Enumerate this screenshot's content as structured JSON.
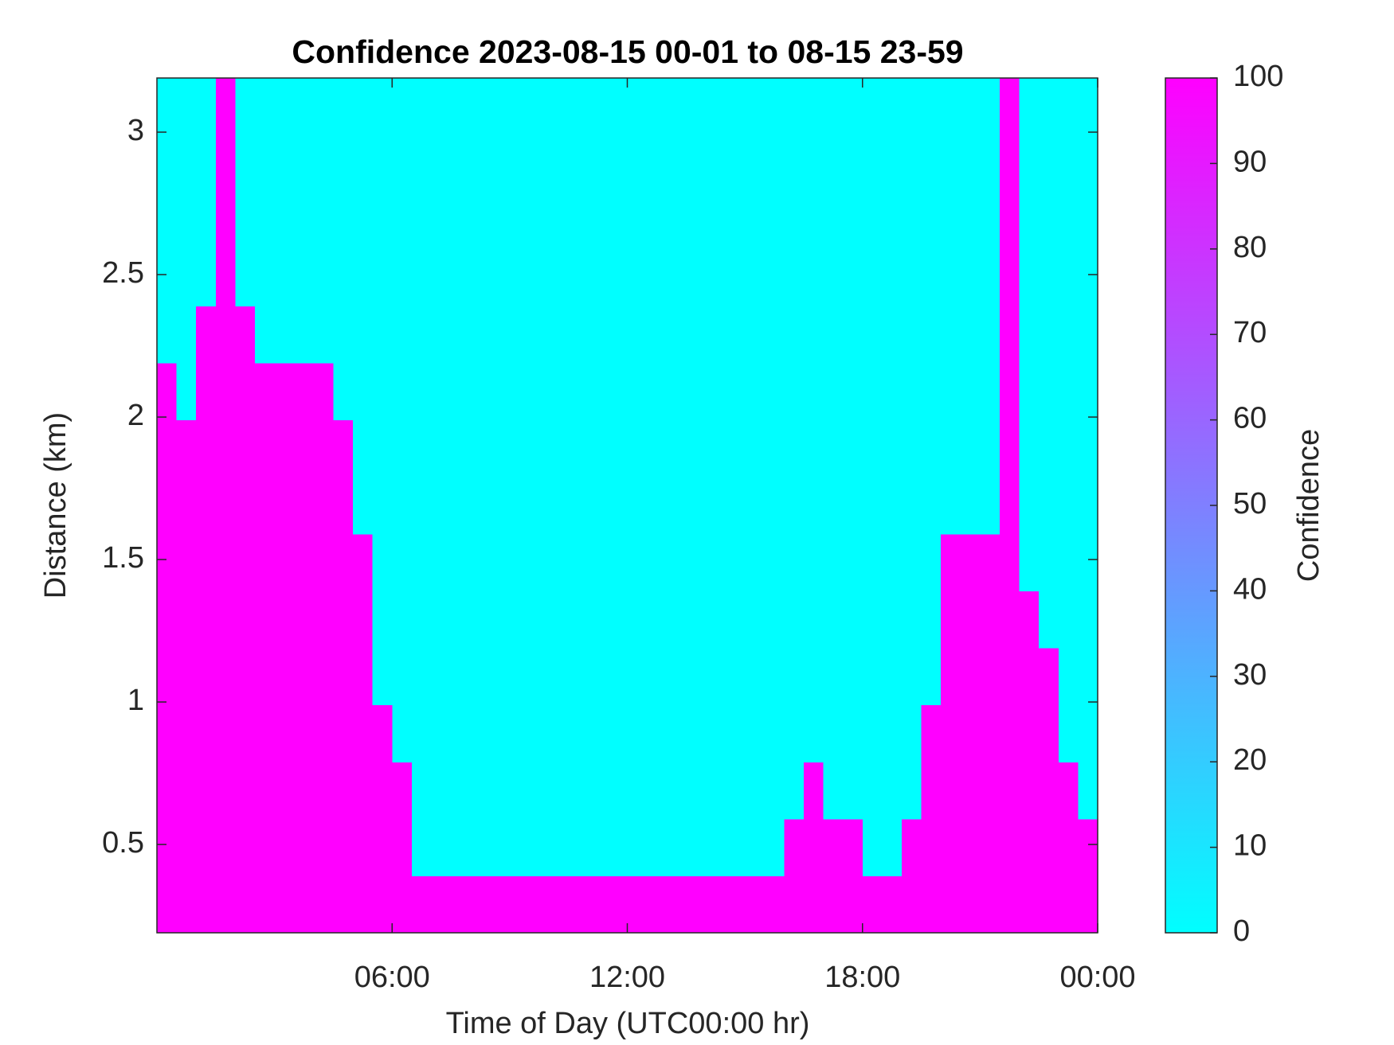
{
  "chart_data": {
    "type": "heatmap",
    "title": "Confidence 2023-08-15 00-01 to 08-15 23-59",
    "xlabel": "Time of Day (UTC00:00 hr)",
    "ylabel": "Distance (km)",
    "colorbar_label": "Confidence",
    "colormap": [
      "#00ffff",
      "#ff00ff"
    ],
    "xlim": [
      0,
      24
    ],
    "xticks": [
      {
        "value": 6,
        "label": "06:00"
      },
      {
        "value": 12,
        "label": "12:00"
      },
      {
        "value": 18,
        "label": "18:00"
      },
      {
        "value": 24,
        "label": "00:00"
      }
    ],
    "ylim": [
      0.19,
      3.19
    ],
    "yticks": [
      0.5,
      1,
      1.5,
      2,
      2.5,
      3
    ],
    "clim": [
      0,
      100
    ],
    "cticks": [
      0,
      10,
      20,
      30,
      40,
      50,
      60,
      70,
      80,
      90,
      100
    ],
    "x": [
      0.25,
      0.75,
      1.25,
      1.75,
      2.25,
      2.75,
      3.25,
      3.75,
      4.25,
      4.75,
      5.25,
      5.75,
      6.25,
      6.75,
      7.25,
      7.75,
      8.25,
      8.75,
      9.25,
      9.75,
      10.25,
      10.75,
      11.25,
      11.75,
      12.25,
      12.75,
      13.25,
      13.75,
      14.25,
      14.75,
      15.25,
      15.75,
      16.25,
      16.75,
      17.25,
      17.75,
      18.25,
      18.75,
      19.25,
      19.75,
      20.25,
      20.75,
      21.25,
      21.75,
      22.25,
      22.75,
      23.25,
      23.75
    ],
    "y": [
      0.29,
      0.49,
      0.69,
      0.89,
      1.09,
      1.29,
      1.49,
      1.69,
      1.89,
      2.09,
      2.29,
      2.49,
      2.69,
      2.89,
      3.09
    ],
    "z": [
      [
        100,
        100,
        100,
        100,
        100,
        100,
        100,
        100,
        100,
        100,
        100,
        100,
        100,
        100,
        100,
        100,
        100,
        100,
        100,
        100,
        100,
        100,
        100,
        100,
        100,
        100,
        100,
        100,
        100,
        100,
        100,
        100,
        100,
        100,
        100,
        100,
        100,
        100,
        100,
        100,
        100,
        100,
        100,
        100,
        100,
        100,
        100,
        100
      ],
      [
        100,
        100,
        100,
        100,
        100,
        100,
        100,
        100,
        100,
        100,
        100,
        100,
        100,
        0,
        0,
        0,
        0,
        0,
        0,
        0,
        0,
        0,
        0,
        0,
        0,
        0,
        0,
        0,
        0,
        0,
        0,
        0,
        100,
        100,
        100,
        100,
        0,
        0,
        100,
        100,
        100,
        100,
        100,
        100,
        100,
        100,
        100,
        100
      ],
      [
        100,
        100,
        100,
        100,
        100,
        100,
        100,
        100,
        100,
        100,
        100,
        100,
        100,
        0,
        0,
        0,
        0,
        0,
        0,
        0,
        0,
        0,
        0,
        0,
        0,
        0,
        0,
        0,
        0,
        0,
        0,
        0,
        0,
        100,
        0,
        0,
        0,
        0,
        0,
        100,
        100,
        100,
        100,
        100,
        100,
        100,
        100,
        0
      ],
      [
        100,
        100,
        100,
        100,
        100,
        100,
        100,
        100,
        100,
        100,
        100,
        100,
        0,
        0,
        0,
        0,
        0,
        0,
        0,
        0,
        0,
        0,
        0,
        0,
        0,
        0,
        0,
        0,
        0,
        0,
        0,
        0,
        0,
        0,
        0,
        0,
        0,
        0,
        0,
        100,
        100,
        100,
        100,
        100,
        100,
        100,
        0,
        0
      ],
      [
        100,
        100,
        100,
        100,
        100,
        100,
        100,
        100,
        100,
        100,
        100,
        0,
        0,
        0,
        0,
        0,
        0,
        0,
        0,
        0,
        0,
        0,
        0,
        0,
        0,
        0,
        0,
        0,
        0,
        0,
        0,
        0,
        0,
        0,
        0,
        0,
        0,
        0,
        0,
        0,
        100,
        100,
        100,
        100,
        100,
        100,
        0,
        0
      ],
      [
        100,
        100,
        100,
        100,
        100,
        100,
        100,
        100,
        100,
        100,
        100,
        0,
        0,
        0,
        0,
        0,
        0,
        0,
        0,
        0,
        0,
        0,
        0,
        0,
        0,
        0,
        0,
        0,
        0,
        0,
        0,
        0,
        0,
        0,
        0,
        0,
        0,
        0,
        0,
        0,
        100,
        100,
        100,
        100,
        100,
        0,
        0,
        0
      ],
      [
        100,
        100,
        100,
        100,
        100,
        100,
        100,
        100,
        100,
        100,
        100,
        0,
        0,
        0,
        0,
        0,
        0,
        0,
        0,
        0,
        0,
        0,
        0,
        0,
        0,
        0,
        0,
        0,
        0,
        0,
        0,
        0,
        0,
        0,
        0,
        0,
        0,
        0,
        0,
        0,
        100,
        100,
        100,
        100,
        0,
        0,
        0,
        0
      ],
      [
        100,
        100,
        100,
        100,
        100,
        100,
        100,
        100,
        100,
        100,
        0,
        0,
        0,
        0,
        0,
        0,
        0,
        0,
        0,
        0,
        0,
        0,
        0,
        0,
        0,
        0,
        0,
        0,
        0,
        0,
        0,
        0,
        0,
        0,
        0,
        0,
        0,
        0,
        0,
        0,
        0,
        0,
        0,
        100,
        0,
        0,
        0,
        0
      ],
      [
        100,
        100,
        100,
        100,
        100,
        100,
        100,
        100,
        100,
        100,
        0,
        0,
        0,
        0,
        0,
        0,
        0,
        0,
        0,
        0,
        0,
        0,
        0,
        0,
        0,
        0,
        0,
        0,
        0,
        0,
        0,
        0,
        0,
        0,
        0,
        0,
        0,
        0,
        0,
        0,
        0,
        0,
        0,
        100,
        0,
        0,
        0,
        0
      ],
      [
        100,
        0,
        100,
        100,
        100,
        100,
        100,
        100,
        100,
        0,
        0,
        0,
        0,
        0,
        0,
        0,
        0,
        0,
        0,
        0,
        0,
        0,
        0,
        0,
        0,
        0,
        0,
        0,
        0,
        0,
        0,
        0,
        0,
        0,
        0,
        0,
        0,
        0,
        0,
        0,
        0,
        0,
        0,
        100,
        0,
        0,
        0,
        0
      ],
      [
        0,
        0,
        100,
        100,
        100,
        0,
        0,
        0,
        0,
        0,
        0,
        0,
        0,
        0,
        0,
        0,
        0,
        0,
        0,
        0,
        0,
        0,
        0,
        0,
        0,
        0,
        0,
        0,
        0,
        0,
        0,
        0,
        0,
        0,
        0,
        0,
        0,
        0,
        0,
        0,
        0,
        0,
        0,
        100,
        0,
        0,
        0,
        0
      ],
      [
        0,
        0,
        0,
        100,
        0,
        0,
        0,
        0,
        0,
        0,
        0,
        0,
        0,
        0,
        0,
        0,
        0,
        0,
        0,
        0,
        0,
        0,
        0,
        0,
        0,
        0,
        0,
        0,
        0,
        0,
        0,
        0,
        0,
        0,
        0,
        0,
        0,
        0,
        0,
        0,
        0,
        0,
        0,
        100,
        0,
        0,
        0,
        0
      ],
      [
        0,
        0,
        0,
        100,
        0,
        0,
        0,
        0,
        0,
        0,
        0,
        0,
        0,
        0,
        0,
        0,
        0,
        0,
        0,
        0,
        0,
        0,
        0,
        0,
        0,
        0,
        0,
        0,
        0,
        0,
        0,
        0,
        0,
        0,
        0,
        0,
        0,
        0,
        0,
        0,
        0,
        0,
        0,
        100,
        0,
        0,
        0,
        0
      ],
      [
        0,
        0,
        0,
        100,
        0,
        0,
        0,
        0,
        0,
        0,
        0,
        0,
        0,
        0,
        0,
        0,
        0,
        0,
        0,
        0,
        0,
        0,
        0,
        0,
        0,
        0,
        0,
        0,
        0,
        0,
        0,
        0,
        0,
        0,
        0,
        0,
        0,
        0,
        0,
        0,
        0,
        0,
        0,
        100,
        0,
        0,
        0,
        0
      ],
      [
        0,
        0,
        0,
        100,
        0,
        0,
        0,
        0,
        0,
        0,
        0,
        0,
        0,
        0,
        0,
        0,
        0,
        0,
        0,
        0,
        0,
        0,
        0,
        0,
        0,
        0,
        0,
        0,
        0,
        0,
        0,
        0,
        0,
        0,
        0,
        0,
        0,
        0,
        0,
        0,
        0,
        0,
        0,
        100,
        0,
        0,
        0,
        0
      ]
    ]
  }
}
